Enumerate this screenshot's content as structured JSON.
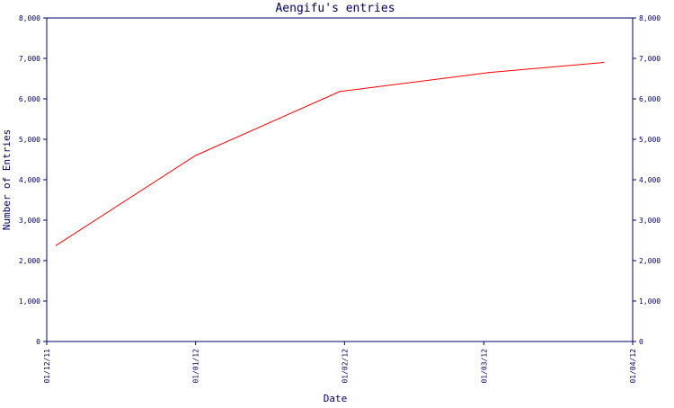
{
  "chart_data": {
    "type": "line",
    "title": "Aengifu's entries",
    "xlabel": "Date",
    "ylabel": "Number of Entries",
    "ylim": [
      0,
      8000
    ],
    "y_ticks": [
      0,
      1000,
      2000,
      3000,
      4000,
      5000,
      6000,
      7000,
      8000
    ],
    "y_tick_labels": [
      "0",
      "1,000",
      "2,000",
      "3,000",
      "4,000",
      "5,000",
      "6,000",
      "7,000",
      "8,000"
    ],
    "xlim": [
      "2011-12-01",
      "2012-04-01"
    ],
    "x_ticks": [
      "2011-12-01",
      "2012-01-01",
      "2012-02-01",
      "2012-03-01",
      "2012-04-01"
    ],
    "x_tick_labels": [
      "01/12/11",
      "01/01/12",
      "01/02/12",
      "01/03/12",
      "01/04/12"
    ],
    "series": [
      {
        "x": [
          "2011-12-03",
          "2012-01-01",
          "2012-01-31",
          "2012-03-02",
          "2012-03-26"
        ],
        "values": [
          2380,
          4600,
          6180,
          6650,
          6900
        ],
        "color": "#ff0000"
      }
    ],
    "colors": {
      "frame": "#000066",
      "text": "#000066",
      "line": "#ff0000",
      "background": "#ffffff"
    },
    "grid": false,
    "legend": "none",
    "right_axis": true
  }
}
